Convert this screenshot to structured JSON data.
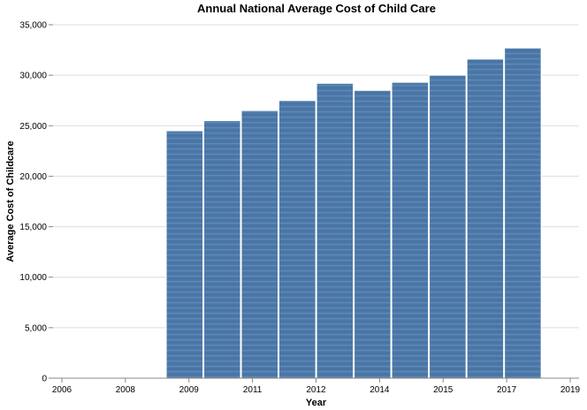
{
  "chart_data": {
    "type": "bar",
    "title": "Annual National Average Cost of Child Care",
    "xlabel": "Year",
    "ylabel": "Average Cost of Childcare",
    "x_tick_labels": [
      "2006",
      "2008",
      "2009",
      "2011",
      "2012",
      "2014",
      "2015",
      "2017",
      "2019"
    ],
    "y_ticks": [
      0,
      5000,
      10000,
      15000,
      20000,
      25000,
      30000,
      35000
    ],
    "y_tick_labels": [
      "0",
      "5,000",
      "10,000",
      "15,000",
      "20,000",
      "25,000",
      "30,000",
      "35,000"
    ],
    "ylim": [
      0,
      35000
    ],
    "x_domain": [
      "2006-01-01",
      "2019-12-31"
    ],
    "bar_color": "#4c78a8",
    "bars": [
      {
        "start": "2009-01-01",
        "end": "2010-01-01",
        "value": 24500
      },
      {
        "start": "2010-01-01",
        "end": "2011-01-01",
        "value": 25500
      },
      {
        "start": "2011-01-01",
        "end": "2012-01-01",
        "value": 26500
      },
      {
        "start": "2012-01-01",
        "end": "2013-01-01",
        "value": 27500
      },
      {
        "start": "2013-01-01",
        "end": "2014-01-01",
        "value": 29200
      },
      {
        "start": "2014-01-01",
        "end": "2015-01-01",
        "value": 28500
      },
      {
        "start": "2015-01-01",
        "end": "2016-01-01",
        "value": 29300
      },
      {
        "start": "2016-01-01",
        "end": "2017-01-01",
        "value": 30000
      },
      {
        "start": "2017-01-01",
        "end": "2018-01-01",
        "value": 31600
      },
      {
        "start": "2018-01-01",
        "end": "2019-01-01",
        "value": 32700
      }
    ]
  }
}
